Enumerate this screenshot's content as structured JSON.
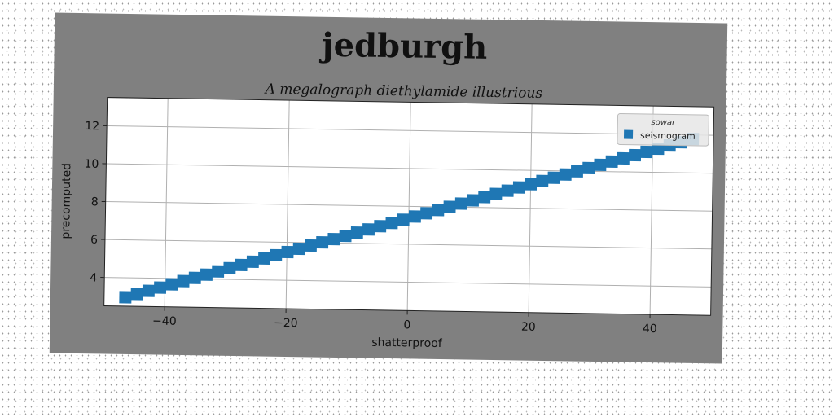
{
  "chart_data": {
    "type": "scatter",
    "title": "jedburgh",
    "subtitle": "A megalograph diethylamide illustrious",
    "xlabel": "shatterproof",
    "ylabel": "precomputed",
    "xlim": [
      -50,
      50
    ],
    "ylim": [
      2.5,
      13.5
    ],
    "xticks": [
      -40,
      -20,
      0,
      20,
      40
    ],
    "yticks": [
      4,
      6,
      8,
      10,
      12
    ],
    "xtick_labels": [
      "−40",
      "−20",
      "0",
      "20",
      "40"
    ],
    "ytick_labels": [
      "4",
      "6",
      "8",
      "10",
      "12"
    ],
    "grid": true,
    "legend": {
      "title": "sowar",
      "position": "top-right"
    },
    "series": [
      {
        "name": "seismogram",
        "marker": "square",
        "color": "#1f77b4",
        "x": [
          -46.5,
          -44.6,
          -42.7,
          -40.8,
          -38.9,
          -37.0,
          -35.1,
          -33.2,
          -31.3,
          -29.4,
          -27.5,
          -25.6,
          -23.7,
          -21.8,
          -19.9,
          -18.0,
          -16.1,
          -14.2,
          -12.3,
          -10.4,
          -8.5,
          -6.6,
          -4.7,
          -2.8,
          -0.9,
          1.0,
          2.9,
          4.8,
          6.7,
          8.6,
          10.5,
          12.4,
          14.3,
          16.2,
          18.1,
          20.0,
          21.9,
          23.8,
          25.7,
          27.6,
          29.5,
          31.4,
          33.3,
          35.2,
          37.1,
          39.0,
          40.9,
          42.8,
          44.7,
          46.6
        ],
        "y": [
          2.97,
          3.15,
          3.33,
          3.51,
          3.69,
          3.87,
          4.05,
          4.23,
          4.41,
          4.59,
          4.77,
          4.95,
          5.13,
          5.31,
          5.49,
          5.67,
          5.85,
          6.03,
          6.21,
          6.39,
          6.57,
          6.75,
          6.93,
          7.11,
          7.29,
          7.47,
          7.65,
          7.83,
          8.01,
          8.19,
          8.37,
          8.55,
          8.73,
          8.91,
          9.09,
          9.27,
          9.45,
          9.63,
          9.81,
          9.99,
          10.17,
          10.35,
          10.53,
          10.71,
          10.89,
          11.07,
          11.25,
          11.43,
          11.61,
          11.79
        ]
      }
    ]
  }
}
